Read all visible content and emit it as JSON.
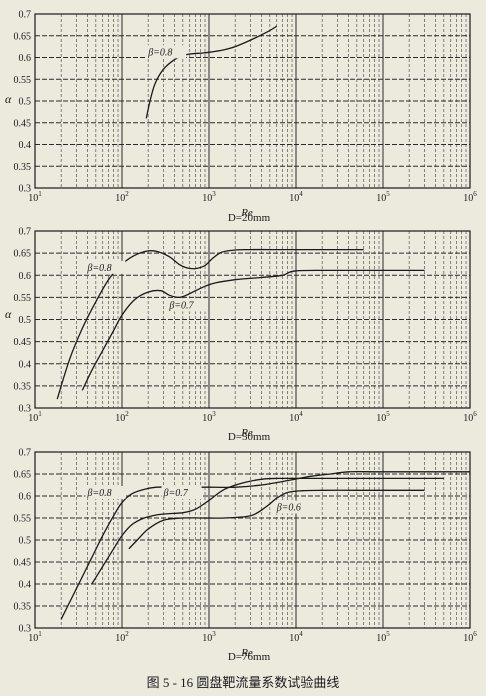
{
  "figure": {
    "caption": "图 5 - 16    圆盘靶流量系数试验曲线"
  },
  "colors": {
    "paper": "#ece9dd",
    "ink": "#1a1a1a",
    "grid_major": "#2a2a2a",
    "grid_minor": "#555555"
  },
  "chart_data": [
    {
      "type": "line",
      "xscale": "log",
      "xlim": [
        10,
        1000000
      ],
      "ylim": [
        0.3,
        0.7
      ],
      "xlabel": "Re",
      "ylabel": "α",
      "subtitle": "D=20mm",
      "xticks": [
        {
          "base": "10",
          "exp": "1"
        },
        {
          "base": "10",
          "exp": "2"
        },
        {
          "base": "10",
          "exp": "3"
        },
        {
          "base": "10",
          "exp": "4"
        },
        {
          "base": "10",
          "exp": "5"
        },
        {
          "base": "10",
          "exp": "6"
        }
      ],
      "yticks": [
        "0.3",
        "0.35",
        "0.4",
        "0.45",
        "0.5",
        "0.55",
        "0.6",
        "0.65",
        "0.7"
      ],
      "grid": true,
      "series": [
        {
          "name": "β=0.8",
          "x": [
            190,
            210,
            240,
            300,
            400,
            500,
            600,
            800,
            1000,
            1500,
            2000,
            3000,
            4000,
            5000,
            6000
          ],
          "y": [
            0.46,
            0.5,
            0.54,
            0.573,
            0.595,
            0.604,
            0.608,
            0.61,
            0.612,
            0.618,
            0.625,
            0.64,
            0.652,
            0.662,
            0.672
          ]
        }
      ],
      "annotations": [
        {
          "text": "β=0.8",
          "x": 200,
          "y": 0.605
        }
      ]
    },
    {
      "type": "line",
      "xscale": "log",
      "xlim": [
        10,
        1000000
      ],
      "ylim": [
        0.3,
        0.7
      ],
      "xlabel": "Re",
      "ylabel": "α",
      "subtitle": "D=50mm",
      "xticks": [
        {
          "base": "10",
          "exp": "1"
        },
        {
          "base": "10",
          "exp": "2"
        },
        {
          "base": "10",
          "exp": "3"
        },
        {
          "base": "10",
          "exp": "4"
        },
        {
          "base": "10",
          "exp": "5"
        },
        {
          "base": "10",
          "exp": "6"
        }
      ],
      "yticks": [
        "0.3",
        "0.35",
        "0.4",
        "0.45",
        "0.5",
        "0.55",
        "0.6",
        "0.65",
        "0.7"
      ],
      "grid": true,
      "series": [
        {
          "name": "β=0.8",
          "x": [
            18,
            25,
            35,
            50,
            70,
            100,
            140,
            200,
            260,
            350,
            450,
            550,
            700,
            900,
            1100,
            1400,
            2000,
            3000,
            5000,
            10000,
            30000,
            60000
          ],
          "y": [
            0.32,
            0.41,
            0.48,
            0.54,
            0.59,
            0.625,
            0.645,
            0.655,
            0.653,
            0.642,
            0.625,
            0.617,
            0.615,
            0.622,
            0.638,
            0.652,
            0.657,
            0.658,
            0.658,
            0.658,
            0.658,
            0.658
          ]
        },
        {
          "name": "β=0.7",
          "x": [
            35,
            45,
            60,
            80,
            100,
            140,
            200,
            280,
            350,
            450,
            550,
            700,
            900,
            1200,
            2000,
            4000,
            7000,
            10000,
            30000,
            100000,
            300000
          ],
          "y": [
            0.34,
            0.385,
            0.43,
            0.475,
            0.51,
            0.545,
            0.562,
            0.565,
            0.555,
            0.55,
            0.555,
            0.565,
            0.575,
            0.583,
            0.59,
            0.595,
            0.6,
            0.61,
            0.611,
            0.611,
            0.611
          ]
        }
      ],
      "annotations": [
        {
          "text": "β=0.8",
          "x": 40,
          "y": 0.61
        },
        {
          "text": "β=0.7",
          "x": 350,
          "y": 0.525
        }
      ]
    },
    {
      "type": "line",
      "xscale": "log",
      "xlim": [
        10,
        1000000
      ],
      "ylim": [
        0.3,
        0.7
      ],
      "xlabel": "Re",
      "ylabel": "",
      "subtitle": "D=76mm",
      "xticks": [
        {
          "base": "10",
          "exp": "1"
        },
        {
          "base": "10",
          "exp": "2"
        },
        {
          "base": "10",
          "exp": "3"
        },
        {
          "base": "10",
          "exp": "4"
        },
        {
          "base": "10",
          "exp": "5"
        },
        {
          "base": "10",
          "exp": "6"
        }
      ],
      "yticks": [
        "0.3",
        "0.35",
        "0.4",
        "0.45",
        "0.5",
        "0.55",
        "0.6",
        "0.65",
        "0.7"
      ],
      "grid": true,
      "series": [
        {
          "name": "β=0.8",
          "x": [
            20,
            30,
            45,
            60,
            80,
            100,
            130,
            180,
            250,
            400,
            700,
            1000,
            2000,
            4000,
            8000,
            15000,
            25000,
            40000,
            100000,
            1000000
          ],
          "y": [
            0.32,
            0.39,
            0.46,
            0.51,
            0.555,
            0.585,
            0.605,
            0.615,
            0.62,
            0.62,
            0.62,
            0.62,
            0.62,
            0.625,
            0.635,
            0.645,
            0.65,
            0.655,
            0.655,
            0.655
          ]
        },
        {
          "name": "β=0.7",
          "x": [
            45,
            60,
            80,
            100,
            130,
            180,
            250,
            350,
            500,
            700,
            1000,
            1500,
            2500,
            4000,
            6000,
            10000,
            30000,
            100000,
            500000
          ],
          "y": [
            0.4,
            0.44,
            0.48,
            0.51,
            0.535,
            0.55,
            0.557,
            0.56,
            0.562,
            0.57,
            0.59,
            0.615,
            0.63,
            0.638,
            0.64,
            0.64,
            0.64,
            0.64,
            0.64
          ]
        },
        {
          "name": "β=0.6",
          "x": [
            120,
            150,
            200,
            300,
            500,
            800,
            1500,
            3000,
            4500,
            6000,
            8000,
            12000,
            20000,
            50000,
            100000,
            300000
          ],
          "y": [
            0.48,
            0.5,
            0.525,
            0.545,
            0.55,
            0.55,
            0.55,
            0.555,
            0.575,
            0.595,
            0.608,
            0.612,
            0.613,
            0.613,
            0.613,
            0.613
          ]
        }
      ],
      "annotations": [
        {
          "text": "β=0.8",
          "x": 40,
          "y": 0.6
        },
        {
          "text": "β=0.7",
          "x": 300,
          "y": 0.6
        },
        {
          "text": "β=0.6",
          "x": 6000,
          "y": 0.567
        }
      ]
    }
  ]
}
